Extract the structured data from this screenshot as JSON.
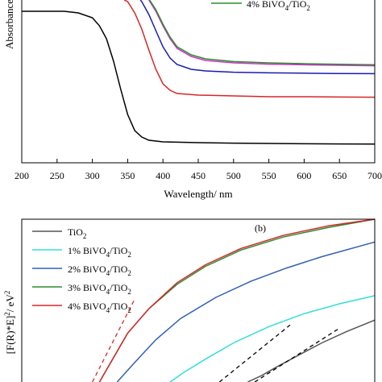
{
  "chart_data": [
    {
      "type": "line",
      "panel_label": "",
      "xlabel": "Wavelength/ nm",
      "ylabel": "Absorbance",
      "xlim": [
        200,
        700
      ],
      "ylim": [
        0,
        1
      ],
      "grid": false,
      "xticks": [
        "200",
        "250",
        "300",
        "350",
        "400",
        "450",
        "500",
        "550",
        "600",
        "650",
        "700"
      ],
      "legend": {
        "placement": "top-right",
        "visible_entries": [
          {
            "text": "4% BiVO4/TiO2",
            "color": "#2e8b2e"
          }
        ]
      },
      "series": [
        {
          "name": "TiO2",
          "color": "#000000",
          "x": [
            200,
            260,
            280,
            300,
            310,
            320,
            330,
            340,
            350,
            360,
            370,
            380,
            400,
            450,
            500,
            550,
            600,
            650,
            700
          ],
          "y": [
            0.93,
            0.93,
            0.92,
            0.89,
            0.84,
            0.76,
            0.62,
            0.45,
            0.29,
            0.19,
            0.15,
            0.13,
            0.12,
            0.115,
            0.112,
            0.11,
            0.108,
            0.107,
            0.106
          ]
        },
        {
          "name": "",
          "color": "#d62728",
          "x": [
            345,
            350,
            360,
            370,
            380,
            390,
            400,
            410,
            420,
            450,
            500,
            550,
            600,
            650,
            700
          ],
          "y": [
            1.0,
            0.99,
            0.92,
            0.82,
            0.69,
            0.57,
            0.48,
            0.44,
            0.42,
            0.41,
            0.405,
            0.4,
            0.4,
            0.398,
            0.397
          ]
        },
        {
          "name": "",
          "color": "#1a1ab5",
          "x": [
            368,
            370,
            380,
            390,
            400,
            410,
            420,
            440,
            460,
            500,
            550,
            600,
            650,
            700
          ],
          "y": [
            1.0,
            0.99,
            0.91,
            0.81,
            0.71,
            0.64,
            0.6,
            0.57,
            0.56,
            0.552,
            0.548,
            0.546,
            0.544,
            0.543
          ]
        },
        {
          "name": "",
          "color": "#cc33cc",
          "x": [
            380,
            390,
            400,
            410,
            420,
            440,
            460,
            500,
            550,
            600,
            650,
            700
          ],
          "y": [
            1.0,
            0.93,
            0.84,
            0.76,
            0.7,
            0.65,
            0.625,
            0.61,
            0.602,
            0.598,
            0.595,
            0.592
          ]
        },
        {
          "name": "",
          "color": "#2e8b2e",
          "x": [
            381,
            390,
            400,
            410,
            420,
            440,
            460,
            500,
            550,
            600,
            650,
            700
          ],
          "y": [
            1.0,
            0.94,
            0.85,
            0.77,
            0.71,
            0.66,
            0.635,
            0.618,
            0.61,
            0.605,
            0.601,
            0.598
          ]
        }
      ]
    },
    {
      "type": "line",
      "panel_label": "(b)",
      "xlabel": "",
      "ylabel": "[F(R)*E]²/ eV²",
      "ylabel_parts": {
        "main": "[F(R)*E]",
        "sup": "2",
        "unit": "/ eV",
        "unit_sup": "2"
      },
      "xlim": [
        0,
        1
      ],
      "ylim": [
        0,
        1
      ],
      "grid": false,
      "legend": {
        "placement": "top-left",
        "entries": [
          {
            "base": "TiO",
            "sub": "2",
            "rest": "",
            "sub2": "",
            "color": "#555555"
          },
          {
            "base": "1% BiVO",
            "sub": "4",
            "rest": "/TiO",
            "sub2": "2",
            "color": "#33dddd"
          },
          {
            "base": "2% BiVO",
            "sub": "4",
            "rest": "/TiO",
            "sub2": "2",
            "color": "#3060b0"
          },
          {
            "base": "3% BiVO",
            "sub": "4",
            "rest": "/TiO",
            "sub2": "2",
            "color": "#2e8b2e"
          },
          {
            "base": "4% BiVO",
            "sub": "4",
            "rest": "/TiO",
            "sub2": "2",
            "color": "#d62728"
          }
        ]
      },
      "series": [
        {
          "name": "TiO2",
          "color": "#555555",
          "x": [
            0.64,
            0.68,
            0.72,
            0.78,
            0.85,
            0.92,
            1.0
          ],
          "y": [
            0.0,
            0.04,
            0.09,
            0.16,
            0.24,
            0.31,
            0.38
          ]
        },
        {
          "name": "1% BiVO4/TiO2",
          "color": "#33dddd",
          "x": [
            0.42,
            0.46,
            0.52,
            0.6,
            0.7,
            0.8,
            0.9,
            1.0
          ],
          "y": [
            0.0,
            0.06,
            0.14,
            0.24,
            0.34,
            0.42,
            0.48,
            0.53
          ]
        },
        {
          "name": "2% BiVO4/TiO2",
          "color": "#3060b0",
          "x": [
            0.27,
            0.32,
            0.38,
            0.45,
            0.55,
            0.65,
            0.75,
            0.85,
            1.0
          ],
          "y": [
            0.0,
            0.12,
            0.26,
            0.39,
            0.52,
            0.62,
            0.7,
            0.77,
            0.86
          ]
        },
        {
          "name": "3% BiVO4/TiO2",
          "color": "#2e8b2e",
          "x": [
            0.22,
            0.26,
            0.3,
            0.36,
            0.44,
            0.52,
            0.62,
            0.74,
            0.87,
            1.0
          ],
          "y": [
            0.0,
            0.15,
            0.3,
            0.45,
            0.6,
            0.71,
            0.81,
            0.89,
            0.95,
            1.0
          ]
        },
        {
          "name": "4% BiVO4/TiO2",
          "color": "#d62728",
          "x": [
            0.22,
            0.26,
            0.3,
            0.36,
            0.44,
            0.52,
            0.62,
            0.74,
            0.87,
            1.0
          ],
          "y": [
            0.0,
            0.15,
            0.3,
            0.45,
            0.61,
            0.72,
            0.82,
            0.9,
            0.96,
            1.0
          ]
        },
        {
          "name": "",
          "color": "#d62728",
          "dashed": true,
          "x": [
            0.2,
            0.32
          ],
          "y": [
            0.0,
            0.51
          ]
        },
        {
          "name": "",
          "color": "#000000",
          "dashed": true,
          "x": [
            0.56,
            0.76
          ],
          "y": [
            0.0,
            0.35
          ]
        },
        {
          "name": "",
          "color": "#000000",
          "dashed": true,
          "x": [
            0.66,
            0.9
          ],
          "y": [
            0.0,
            0.33
          ]
        }
      ]
    }
  ]
}
